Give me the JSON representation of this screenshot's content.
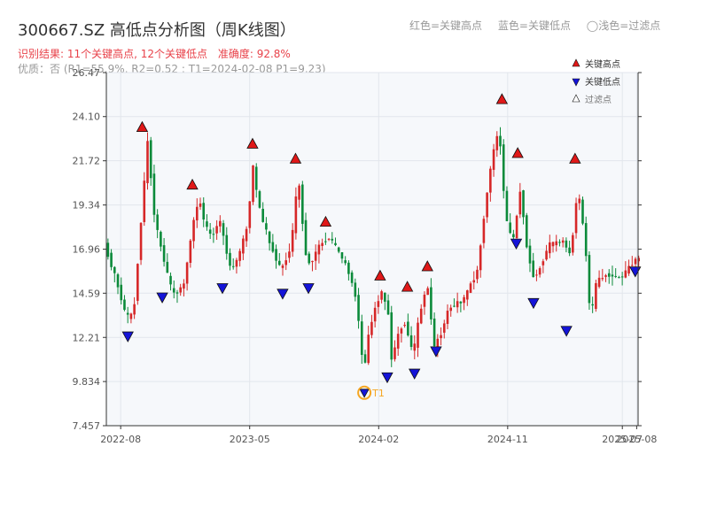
{
  "title": "300667.SZ 高低点分析图（周K线图）",
  "header_legend": {
    "red": "红色=关键高点",
    "blue": "蓝色=关键低点",
    "light": "◯浅色=过滤点"
  },
  "summary": {
    "result": "识别结果: 11个关键高点, 12个关键低点",
    "accuracy": "准确度: 92.8%"
  },
  "quality_line": "优质：否 (R1=55.9%, R2=0.52 ; T1=2024-02-08 P1=9.23)",
  "colors": {
    "up": "#d62728",
    "down": "#0b8a3a",
    "high_marker": "#e01818",
    "low_marker": "#1414d8",
    "t1_ring": "#f5a623",
    "plot_bg": "#f6f8fb",
    "grid": "#e2e6ec",
    "axis": "#333333"
  },
  "chart_data": {
    "type": "candlestick",
    "title": "300667.SZ 高低点分析图（周K线图）",
    "ylim": [
      7.457,
      26.47
    ],
    "yticks": [
      "26.47",
      "24.10",
      "21.72",
      "19.34",
      "16.96",
      "14.59",
      "12.21",
      "9.834",
      "7.457"
    ],
    "ytick_values": [
      26.47,
      24.1,
      21.72,
      19.34,
      16.96,
      14.59,
      12.21,
      9.834,
      7.457
    ],
    "xlim": [
      "2022-07",
      "2025-08"
    ],
    "xticks": [
      "2022-08",
      "2023-05",
      "2024-02",
      "2024-11",
      "2025-07",
      "2025-08"
    ],
    "xtick_positions": [
      1.0,
      10.0,
      19.0,
      28.0,
      36.0,
      37.0
    ],
    "grid": true,
    "legend": {
      "position": "top-right",
      "items": [
        "关键高点",
        "关键低点",
        "过滤点"
      ]
    },
    "price_path": [
      [
        0.0,
        17.2
      ],
      [
        0.8,
        15.3
      ],
      [
        1.5,
        13.3
      ],
      [
        2.0,
        13.4
      ],
      [
        2.5,
        18.2
      ],
      [
        3.0,
        22.8
      ],
      [
        3.5,
        18.5
      ],
      [
        4.0,
        16.8
      ],
      [
        4.5,
        15.2
      ],
      [
        4.8,
        14.5
      ],
      [
        5.5,
        15.0
      ],
      [
        6.2,
        18.5
      ],
      [
        6.6,
        19.7
      ],
      [
        7.0,
        18.2
      ],
      [
        7.5,
        17.6
      ],
      [
        8.0,
        18.6
      ],
      [
        8.8,
        15.8
      ],
      [
        9.3,
        16.5
      ],
      [
        10.0,
        18.3
      ],
      [
        10.3,
        21.6
      ],
      [
        10.8,
        19.1
      ],
      [
        11.5,
        17.3
      ],
      [
        12.3,
        15.8
      ],
      [
        13.0,
        17.1
      ],
      [
        13.5,
        20.9
      ],
      [
        14.0,
        16.8
      ],
      [
        14.3,
        16.1
      ],
      [
        15.0,
        17.2
      ],
      [
        15.7,
        17.6
      ],
      [
        16.4,
        16.7
      ],
      [
        17.0,
        15.8
      ],
      [
        17.5,
        14.4
      ],
      [
        17.9,
        12.0
      ],
      [
        18.0,
        10.0
      ],
      [
        18.5,
        12.8
      ],
      [
        19.0,
        14.1
      ],
      [
        19.3,
        14.7
      ],
      [
        19.8,
        13.5
      ],
      [
        20.0,
        11.0
      ],
      [
        20.6,
        12.7
      ],
      [
        21.0,
        13.0
      ],
      [
        21.5,
        11.2
      ],
      [
        22.0,
        13.6
      ],
      [
        22.5,
        15.1
      ],
      [
        23.0,
        11.7
      ],
      [
        23.5,
        12.5
      ],
      [
        24.0,
        13.8
      ],
      [
        25.0,
        14.2
      ],
      [
        26.0,
        15.8
      ],
      [
        26.5,
        19.0
      ],
      [
        27.0,
        21.8
      ],
      [
        27.5,
        23.5
      ],
      [
        28.0,
        18.5
      ],
      [
        28.5,
        17.4
      ],
      [
        29.0,
        20.2
      ],
      [
        29.5,
        16.7
      ],
      [
        30.0,
        15.3
      ],
      [
        31.0,
        17.2
      ],
      [
        32.0,
        17.4
      ],
      [
        32.5,
        16.6
      ],
      [
        33.0,
        20.3
      ],
      [
        33.5,
        17.5
      ],
      [
        33.9,
        13.1
      ],
      [
        34.3,
        15.2
      ],
      [
        35.0,
        15.6
      ],
      [
        36.0,
        15.4
      ],
      [
        36.5,
        15.9
      ],
      [
        37.0,
        16.4
      ]
    ],
    "key_highs": [
      {
        "x": 2.5,
        "value": 23.2
      },
      {
        "x": 6.0,
        "value": 20.1
      },
      {
        "x": 10.2,
        "value": 22.3
      },
      {
        "x": 13.2,
        "value": 21.5
      },
      {
        "x": 15.3,
        "value": 18.1
      },
      {
        "x": 19.1,
        "value": 15.2
      },
      {
        "x": 21.0,
        "value": 14.6
      },
      {
        "x": 22.4,
        "value": 15.7
      },
      {
        "x": 27.6,
        "value": 24.7
      },
      {
        "x": 28.7,
        "value": 21.8
      },
      {
        "x": 32.7,
        "value": 21.5
      }
    ],
    "key_lows": [
      {
        "x": 1.5,
        "value": 12.6
      },
      {
        "x": 3.9,
        "value": 14.7
      },
      {
        "x": 8.1,
        "value": 15.2
      },
      {
        "x": 12.3,
        "value": 14.9
      },
      {
        "x": 14.1,
        "value": 15.2
      },
      {
        "x": 19.6,
        "value": 10.4
      },
      {
        "x": 21.5,
        "value": 10.6
      },
      {
        "x": 23.0,
        "value": 11.8
      },
      {
        "x": 28.6,
        "value": 17.6
      },
      {
        "x": 29.8,
        "value": 14.4
      },
      {
        "x": 32.1,
        "value": 12.9
      },
      {
        "x": 36.9,
        "value": 16.1
      }
    ],
    "t1_point": {
      "x": 18.0,
      "value": 9.23,
      "label": "T1",
      "date": "2024-02-08"
    }
  }
}
